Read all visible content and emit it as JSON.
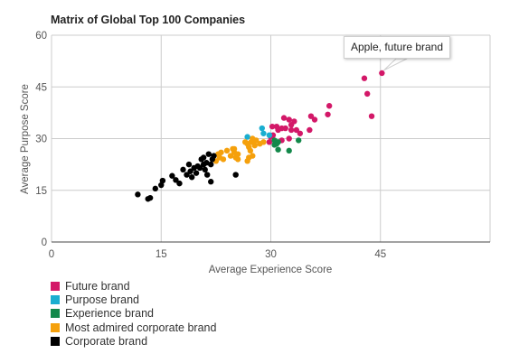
{
  "chart_data": {
    "type": "scatter",
    "title": "Matrix of Global Top 100 Companies",
    "xlabel": "Average Experience Score",
    "ylabel": "Average Purpose Score",
    "xlim": [
      0,
      60
    ],
    "ylim": [
      0,
      60
    ],
    "x_ticks": [
      "0",
      "15",
      "30",
      "45"
    ],
    "y_ticks": [
      "0",
      "15",
      "30",
      "45",
      "60"
    ],
    "grid": true,
    "legend_position": "bottom-left",
    "tooltip": "Apple, future brand",
    "series": [
      {
        "name": "Future brand",
        "color": "#d31868",
        "points": [
          [
            45.2,
            49.0
          ],
          [
            42.8,
            47.5
          ],
          [
            43.2,
            43.0
          ],
          [
            43.8,
            36.5
          ],
          [
            38.0,
            39.5
          ],
          [
            37.8,
            37.0
          ],
          [
            36.0,
            35.5
          ],
          [
            35.5,
            36.5
          ],
          [
            35.3,
            32.5
          ],
          [
            34.0,
            31.5
          ],
          [
            33.5,
            32.5
          ],
          [
            33.2,
            35.0
          ],
          [
            32.8,
            34.0
          ],
          [
            32.5,
            35.5
          ],
          [
            31.8,
            36.0
          ],
          [
            31.5,
            33.0
          ],
          [
            31.0,
            32.5
          ],
          [
            30.8,
            33.5
          ],
          [
            30.2,
            33.5
          ],
          [
            30.3,
            31.0
          ],
          [
            30.0,
            30.5
          ],
          [
            29.8,
            29.0
          ],
          [
            32.5,
            30.0
          ],
          [
            31.5,
            29.5
          ],
          [
            32.8,
            32.5
          ],
          [
            32.0,
            33.0
          ]
        ]
      },
      {
        "name": "Purpose brand",
        "color": "#1aaed0",
        "points": [
          [
            26.8,
            30.5
          ],
          [
            28.8,
            33.0
          ],
          [
            29.0,
            31.5
          ],
          [
            29.8,
            31.0
          ]
        ]
      },
      {
        "name": "Experience brand",
        "color": "#13884a",
        "points": [
          [
            30.5,
            29.5
          ],
          [
            30.8,
            28.5
          ],
          [
            31.0,
            29.0
          ],
          [
            30.5,
            28.2
          ],
          [
            31.0,
            26.8
          ],
          [
            32.5,
            26.5
          ],
          [
            33.8,
            29.5
          ]
        ]
      },
      {
        "name": "Most admired corporate brand",
        "color": "#f5a00c",
        "points": [
          [
            22.5,
            23.5
          ],
          [
            22.8,
            25.5
          ],
          [
            23.0,
            24.5
          ],
          [
            23.2,
            26.0
          ],
          [
            23.5,
            24.0
          ],
          [
            24.0,
            26.5
          ],
          [
            24.5,
            25.0
          ],
          [
            24.8,
            27.0
          ],
          [
            25.0,
            26.0
          ],
          [
            25.2,
            24.5
          ],
          [
            25.5,
            24.0
          ],
          [
            25.5,
            25.5
          ],
          [
            26.5,
            29.0
          ],
          [
            26.8,
            28.5
          ],
          [
            27.0,
            27.5
          ],
          [
            27.2,
            26.5
          ],
          [
            27.3,
            29.0
          ],
          [
            27.5,
            25.0
          ],
          [
            27.5,
            30.0
          ],
          [
            27.8,
            28.0
          ],
          [
            28.0,
            29.5
          ],
          [
            28.5,
            28.5
          ],
          [
            29.0,
            29.0
          ],
          [
            26.8,
            23.5
          ],
          [
            27.0,
            24.5
          ],
          [
            25.0,
            27.0
          ],
          [
            27.8,
            29.5
          ]
        ]
      },
      {
        "name": "Corporate brand",
        "color": "#000000",
        "points": [
          [
            11.8,
            13.8
          ],
          [
            13.2,
            12.5
          ],
          [
            13.5,
            12.8
          ],
          [
            14.2,
            15.5
          ],
          [
            15.0,
            16.5
          ],
          [
            15.2,
            17.8
          ],
          [
            16.5,
            19.2
          ],
          [
            17.0,
            18.0
          ],
          [
            17.5,
            17.0
          ],
          [
            18.0,
            21.0
          ],
          [
            18.5,
            19.5
          ],
          [
            18.8,
            22.5
          ],
          [
            19.2,
            18.8
          ],
          [
            19.5,
            21.5
          ],
          [
            19.8,
            20.0
          ],
          [
            20.0,
            22.0
          ],
          [
            20.3,
            21.5
          ],
          [
            20.5,
            24.0
          ],
          [
            20.8,
            24.5
          ],
          [
            20.8,
            22.5
          ],
          [
            21.0,
            21.0
          ],
          [
            21.2,
            23.0
          ],
          [
            21.3,
            19.5
          ],
          [
            21.5,
            25.5
          ],
          [
            21.8,
            22.5
          ],
          [
            21.8,
            17.5
          ],
          [
            22.0,
            24.0
          ],
          [
            22.2,
            25.0
          ],
          [
            25.2,
            19.5
          ],
          [
            19.0,
            20.5
          ]
        ]
      }
    ]
  }
}
